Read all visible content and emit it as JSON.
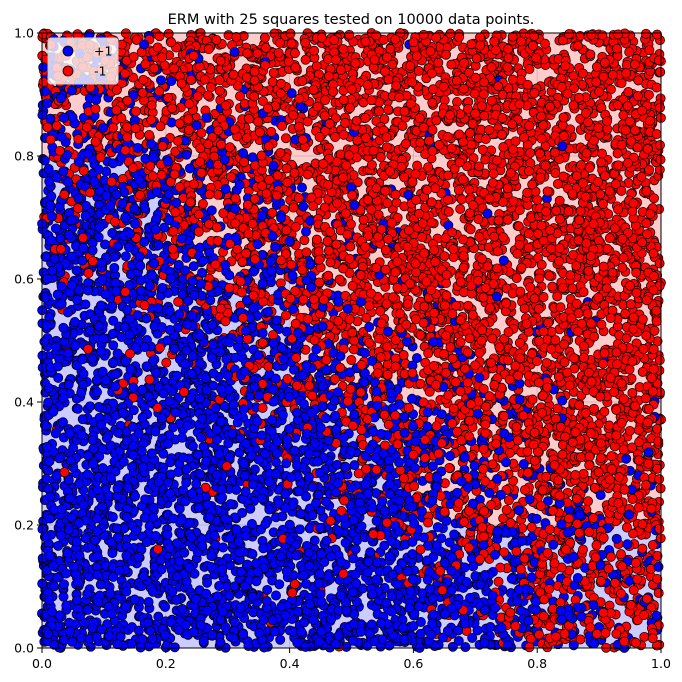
{
  "chart_data": {
    "type": "scatter",
    "title": "ERM with 25 squares tested on 10000 data points.",
    "xlabel": "",
    "ylabel": "",
    "xlim": [
      0,
      1
    ],
    "ylim": [
      0,
      1
    ],
    "xticks": [
      "0.0",
      "0.2",
      "0.4",
      "0.6",
      "0.8",
      "1.0"
    ],
    "yticks": [
      "0.0",
      "0.2",
      "0.4",
      "0.6",
      "0.8",
      "1.0"
    ],
    "grid_size": 5,
    "n_points": 10000,
    "legend": {
      "placement": "top-left",
      "entries": [
        {
          "label": "+1",
          "color": "#0000ff"
        },
        {
          "label": "-1",
          "color": "#ff0000"
        }
      ]
    },
    "series": [
      {
        "name": "+1",
        "color": "#0000ff"
      },
      {
        "name": "-1",
        "color": "#ff0000"
      }
    ],
    "region_colors": {
      "+1": "#ccccff",
      "-1": "#ffcccc"
    },
    "cell_predictions": [
      [
        "+1",
        "+1",
        "+1",
        "+1",
        "-1"
      ],
      [
        "+1",
        "+1",
        "+1",
        "-1",
        "-1"
      ],
      [
        "+1",
        "+1",
        "-1",
        "-1",
        "-1"
      ],
      [
        "+1",
        "-1",
        "-1",
        "-1",
        "-1"
      ],
      [
        "+1",
        "-1",
        "-1",
        "-1",
        "-1"
      ]
    ]
  }
}
